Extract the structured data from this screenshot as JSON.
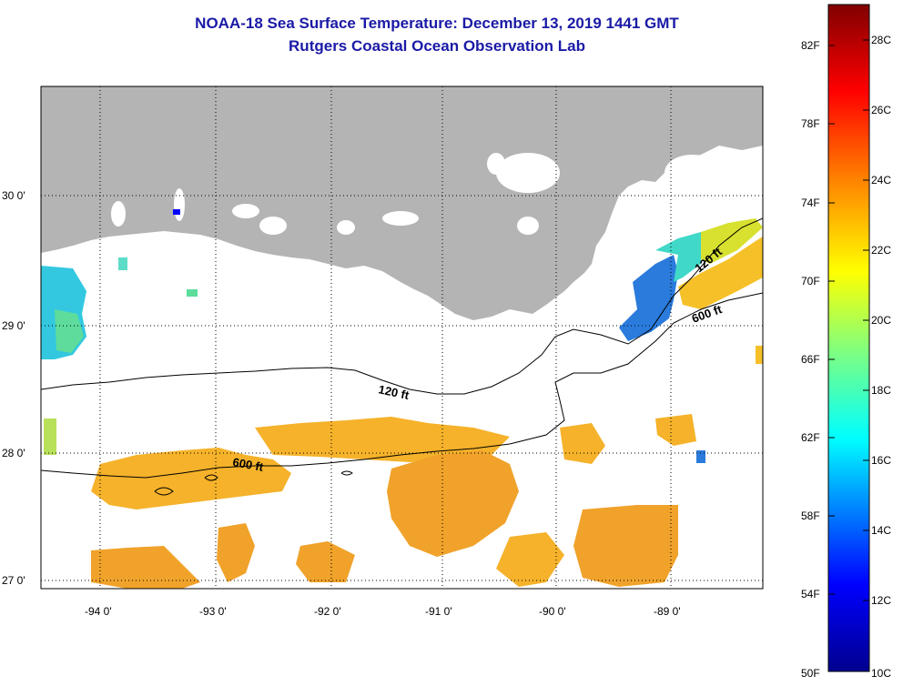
{
  "title": "NOAA-18 Sea Surface Temperature:  December 13, 2019 1441 GMT",
  "subtitle": "Rutgers Coastal Ocean Observation Lab",
  "map": {
    "lon_ticks": [
      "-94 0'",
      "-93 0'",
      "-92 0'",
      "-91 0'",
      "-90 0'",
      "-89 0'"
    ],
    "lat_ticks": [
      "30 0'",
      "29 0'",
      "28 0'",
      "27 0'"
    ],
    "contour_labels": [
      "120 ft",
      "600 ft",
      "120 ft",
      "600 ft"
    ],
    "colors": {
      "land": "#b4b4b4",
      "water_cloud": "#ffffff",
      "warm_sst": "#f5a623"
    }
  },
  "colorbar": {
    "fahrenheit": [
      "82F",
      "78F",
      "74F",
      "70F",
      "66F",
      "62F",
      "58F",
      "54F",
      "50F"
    ],
    "celsius": [
      "28C",
      "26C",
      "24C",
      "22C",
      "20C",
      "18C",
      "16C",
      "14C",
      "12C",
      "10C"
    ]
  }
}
